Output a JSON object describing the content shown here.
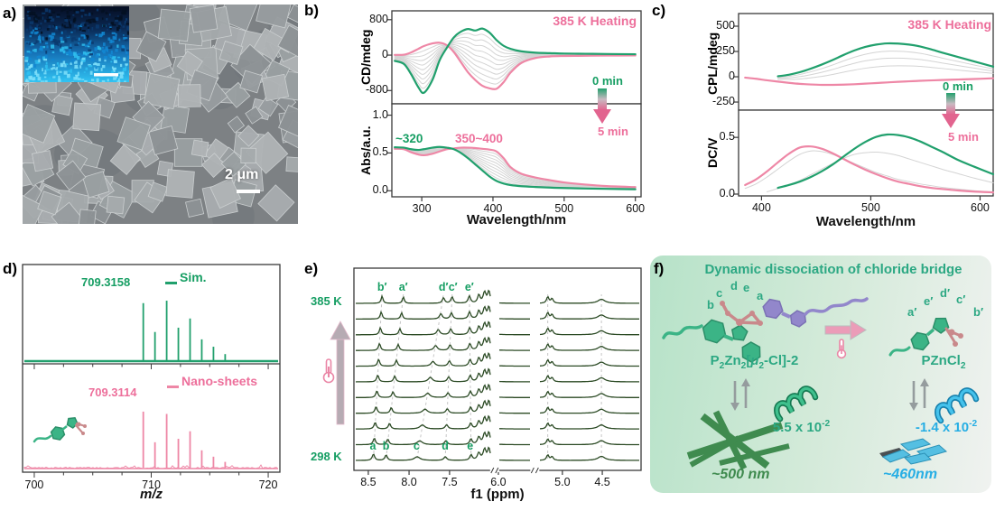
{
  "colors": {
    "green": "#21a06d",
    "pink": "#ee87a6",
    "text_green": "#169e63",
    "text_pink": "#ed6f9b",
    "scheme_green": "#2ca883",
    "blue": "#27aee4",
    "rod_green": "#3f8b4f",
    "purple": "#9287cb",
    "rosy": "#c9898b",
    "nmr_trace": "#2c4b25",
    "gray_curve": "#d4d4d4"
  },
  "panels": {
    "a": {
      "label": "a)",
      "scalebar": "2 μm"
    },
    "b": {
      "label": "b)",
      "heating": "385 K Heating",
      "t0": "0 min",
      "t1": "5 min",
      "green_peak": "~320",
      "pink_peak": "350~400"
    },
    "c": {
      "label": "c)",
      "heating": "385 K Heating",
      "t0": "0 min",
      "t1": "5 min"
    },
    "d": {
      "label": "d)"
    },
    "e": {
      "label": "e)"
    },
    "f": {
      "label": "f)",
      "title": "Dynamic dissociation of chloride bridge",
      "left_site_labels": [
        "b",
        "c",
        "d",
        "e",
        "a"
      ],
      "right_site_labels": [
        "a′",
        "e′",
        "d′",
        "c′",
        "b′"
      ],
      "left_formula": [
        {
          "t": "P"
        },
        {
          "t": "2",
          "sub": true
        },
        {
          "t": "Zn"
        },
        {
          "t": "2",
          "sub": true
        },
        {
          "t": "["
        },
        {
          "t": "μ",
          "i": true
        },
        {
          "t": "2",
          "sub": true
        },
        {
          "t": "-Cl]-2"
        }
      ],
      "right_formula": [
        {
          "t": "PZnCl"
        },
        {
          "t": "2",
          "sub": true
        }
      ],
      "k_left": [
        {
          "t": "5.5 x 10"
        },
        {
          "t": "-2",
          "sup": true
        }
      ],
      "k_right": [
        {
          "t": "-1.4 x 10"
        },
        {
          "t": "-2",
          "sup": true
        }
      ],
      "size_left": "~500 nm",
      "size_right": "~460nm"
    }
  },
  "chart_data": [
    {
      "id": "cd",
      "type": "line",
      "ylabel": "CD/mdeg",
      "xlim": [
        258,
        608
      ],
      "ylim": [
        -1100,
        1000
      ],
      "yticks": [
        {
          "v": 800,
          "label": "800"
        },
        {
          "v": 0,
          "label": "0"
        },
        {
          "v": -800,
          "label": "-800"
        }
      ],
      "x": [
        262,
        275,
        285,
        295,
        303,
        315,
        325,
        335,
        345,
        355,
        365,
        375,
        385,
        395,
        405,
        415,
        425,
        440,
        460,
        480,
        500,
        530,
        560,
        600
      ],
      "series": [
        {
          "name": "0 min",
          "color": "#21a06d",
          "values": [
            -130,
            -200,
            -430,
            -720,
            -850,
            -560,
            -120,
            160,
            400,
            530,
            590,
            555,
            600,
            510,
            340,
            210,
            140,
            85,
            55,
            45,
            35,
            30,
            25,
            20
          ]
        },
        {
          "name": "5 min",
          "color": "#ee87a6",
          "values": [
            5,
            10,
            60,
            140,
            205,
            265,
            280,
            225,
            70,
            -160,
            -390,
            -560,
            -690,
            -750,
            -760,
            -610,
            -390,
            -175,
            -65,
            -30,
            -20,
            -15,
            -10,
            -8
          ]
        }
      ],
      "fade_weights": [
        0.1,
        0.2,
        0.3,
        0.4,
        0.5,
        0.6,
        0.7,
        0.8,
        0.9
      ]
    },
    {
      "id": "abs",
      "type": "line",
      "ylabel": "Abs/a.u.",
      "xlabel": "Wavelength/nm",
      "xlim": [
        258,
        608
      ],
      "ylim": [
        -0.08,
        1.15
      ],
      "yticks": [
        {
          "v": 1.0,
          "label": "1.0"
        },
        {
          "v": 0.5,
          "label": "0.5"
        },
        {
          "v": 0.0,
          "label": "0.0"
        }
      ],
      "xticks": [
        {
          "v": 300,
          "label": "300"
        },
        {
          "v": 400,
          "label": "400"
        },
        {
          "v": 500,
          "label": "500"
        },
        {
          "v": 600,
          "label": "600"
        }
      ],
      "x": [
        262,
        275,
        285,
        295,
        303,
        315,
        325,
        335,
        345,
        355,
        365,
        375,
        385,
        395,
        405,
        415,
        425,
        440,
        460,
        480,
        500,
        530,
        560,
        600
      ],
      "series": [
        {
          "name": "0 min",
          "color": "#21a06d",
          "values": [
            0.575,
            0.57,
            0.55,
            0.54,
            0.55,
            0.57,
            0.58,
            0.57,
            0.55,
            0.5,
            0.43,
            0.35,
            0.27,
            0.19,
            0.13,
            0.095,
            0.075,
            0.06,
            0.05,
            0.042,
            0.036,
            0.03,
            0.025,
            0.02
          ]
        },
        {
          "name": "5 min",
          "color": "#ee87a6",
          "values": [
            0.555,
            0.55,
            0.51,
            0.48,
            0.47,
            0.49,
            0.52,
            0.55,
            0.56,
            0.57,
            0.57,
            0.565,
            0.555,
            0.545,
            0.52,
            0.43,
            0.31,
            0.225,
            0.175,
            0.14,
            0.11,
            0.082,
            0.062,
            0.048
          ]
        }
      ],
      "fade_weights": [
        0.1,
        0.2,
        0.3,
        0.4,
        0.5,
        0.6,
        0.7,
        0.8,
        0.9
      ]
    },
    {
      "id": "cpl",
      "type": "line",
      "ylabel": "CPL/mdeg",
      "xlim": [
        379,
        612
      ],
      "ylim": [
        -330,
        625
      ],
      "yticks": [
        {
          "v": 500,
          "label": "500"
        },
        {
          "v": 250,
          "label": "250"
        },
        {
          "v": 0,
          "label": "0"
        },
        {
          "v": -250,
          "label": "-250"
        }
      ],
      "x": [
        385,
        395,
        405,
        415,
        425,
        435,
        445,
        455,
        465,
        475,
        485,
        495,
        505,
        515,
        525,
        535,
        545,
        555,
        565,
        580,
        595,
        612
      ],
      "series": [
        {
          "name": "0 min",
          "color": "#21a06d",
          "values": [
            null,
            null,
            null,
            5,
            20,
            45,
            80,
            120,
            165,
            215,
            260,
            295,
            318,
            330,
            328,
            318,
            300,
            272,
            240,
            195,
            150,
            100
          ]
        },
        {
          "name": "5 min",
          "color": "#ee87a6",
          "values": [
            -8,
            -20,
            -35,
            -48,
            -60,
            -70,
            -76,
            -80,
            -80,
            -78,
            -74,
            -68,
            -62,
            -56,
            -50,
            -45,
            -40,
            -36,
            -32,
            -27,
            -22,
            -15
          ]
        }
      ],
      "fade_weights": [
        0.2,
        0.38,
        0.58
      ]
    },
    {
      "id": "dc",
      "type": "line",
      "ylabel": "DC/V",
      "xlabel": "Wavelength/nm",
      "xlim": [
        379,
        612
      ],
      "ylim": [
        -0.016,
        0.74
      ],
      "yticks": [
        {
          "v": 0.5,
          "label": "0.5"
        },
        {
          "v": 0.0,
          "label": "0.0"
        }
      ],
      "xticks": [
        {
          "v": 400,
          "label": "400"
        },
        {
          "v": 500,
          "label": "500"
        },
        {
          "v": 600,
          "label": "600"
        }
      ],
      "x": [
        385,
        395,
        405,
        415,
        425,
        435,
        445,
        455,
        465,
        475,
        485,
        495,
        505,
        515,
        525,
        535,
        545,
        555,
        565,
        580,
        595,
        612
      ],
      "series": [
        {
          "name": "0 min",
          "color": "#21a06d",
          "values": [
            null,
            null,
            null,
            0.055,
            0.08,
            0.11,
            0.15,
            0.2,
            0.26,
            0.33,
            0.4,
            0.46,
            0.505,
            0.525,
            0.52,
            0.5,
            0.465,
            0.42,
            0.375,
            0.3,
            0.24,
            0.175
          ]
        },
        {
          "name": "5 min",
          "color": "#ee87a6",
          "values": [
            0.08,
            0.13,
            0.2,
            0.28,
            0.355,
            0.41,
            0.42,
            0.4,
            0.36,
            0.31,
            0.26,
            0.215,
            0.175,
            0.14,
            0.11,
            0.09,
            0.07,
            0.055,
            0.045,
            0.032,
            0.022,
            0.015
          ]
        }
      ],
      "gray_series": [
        {
          "values": [
            0.05,
            0.09,
            0.15,
            0.22,
            0.29,
            0.35,
            0.38,
            0.375,
            0.35,
            0.31,
            0.27,
            0.23,
            0.19,
            0.16,
            0.13,
            0.11,
            0.09,
            0.075,
            0.06,
            0.045,
            0.03,
            0.02
          ]
        },
        {
          "values": [
            null,
            null,
            0.02,
            0.05,
            0.08,
            0.12,
            0.17,
            0.22,
            0.27,
            0.315,
            0.35,
            0.365,
            0.37,
            0.36,
            0.34,
            0.31,
            0.28,
            0.25,
            0.22,
            0.18,
            0.14,
            0.1
          ]
        }
      ]
    },
    {
      "id": "ms",
      "type": "stem",
      "xlabel": "m/z",
      "xlim": [
        699,
        721
      ],
      "minor_step": 2.5,
      "xticks": [
        {
          "v": 700,
          "label": "700"
        },
        {
          "v": 710,
          "label": "710"
        },
        {
          "v": 720,
          "label": "720"
        }
      ],
      "mz": [
        709.32,
        710.32,
        711.32,
        712.32,
        713.32,
        714.32,
        715.32,
        716.32
      ],
      "series": [
        {
          "name": "Sim.",
          "color": "#21a06d",
          "peak_label": "709.3158",
          "rel": [
            0.93,
            0.46,
            0.97,
            0.53,
            0.68,
            0.34,
            0.22,
            0.1
          ]
        },
        {
          "name": "Nano-sheets",
          "color": "#ee87a6",
          "peak_label": "709.3114",
          "rel": [
            0.97,
            0.44,
            0.93,
            0.5,
            0.63,
            0.3,
            0.19,
            0.1
          ]
        }
      ]
    },
    {
      "id": "nmr",
      "type": "nmr-stack",
      "xlabel": "f1 (ppm)",
      "rows": 11,
      "temp_top": "385 K",
      "temp_bottom": "298 K",
      "xticks": [
        {
          "label": "8.5",
          "f": 0.05
        },
        {
          "label": "8.0",
          "f": 0.192
        },
        {
          "label": "7.5",
          "f": 0.333
        },
        {
          "label": "6.0",
          "f": 0.503
        },
        {
          "label": "5.0",
          "f": 0.726
        },
        {
          "label": "4.5",
          "f": 0.865
        }
      ],
      "gaps": [
        [
          0.475,
          0.505
        ],
        [
          0.615,
          0.645
        ]
      ],
      "peaks_298": [
        [
          0.068,
          7,
          0.005
        ],
        [
          0.112,
          6,
          0.005
        ],
        [
          0.22,
          4,
          0.012
        ],
        [
          0.318,
          4,
          0.006
        ],
        [
          0.408,
          6,
          0.005
        ],
        [
          0.435,
          8,
          0.006
        ],
        [
          0.455,
          12,
          0.006
        ],
        [
          0.47,
          13,
          0.005
        ],
        [
          0.675,
          6,
          0.005
        ],
        [
          0.69,
          4,
          0.005
        ],
        [
          0.862,
          4.5,
          0.015
        ]
      ],
      "peaks_385": [
        [
          0.098,
          8,
          0.004
        ],
        [
          0.172,
          7,
          0.004
        ],
        [
          0.312,
          6,
          0.005
        ],
        [
          0.342,
          7,
          0.005
        ],
        [
          0.402,
          8,
          0.005
        ],
        [
          0.435,
          9,
          0.005
        ],
        [
          0.455,
          12,
          0.006
        ],
        [
          0.47,
          13,
          0.005
        ],
        [
          0.675,
          7,
          0.005
        ],
        [
          0.69,
          5,
          0.005
        ],
        [
          0.862,
          4.5,
          0.015
        ]
      ],
      "guides": [
        [
          0.068,
          0.098
        ],
        [
          0.112,
          0.172
        ],
        [
          0.22,
          0.312
        ],
        [
          0.318,
          0.342
        ],
        [
          0.408,
          0.402
        ],
        [
          0.675,
          0.675
        ],
        [
          0.862,
          0.862
        ]
      ],
      "labels_top": [
        {
          "t": "b′",
          "f": 0.098
        },
        {
          "t": "a′",
          "f": 0.172
        },
        {
          "t": "d′",
          "f": 0.312
        },
        {
          "t": "c′",
          "f": 0.345
        },
        {
          "t": "e′",
          "f": 0.402
        }
      ],
      "labels_bottom": [
        {
          "t": "a",
          "f": 0.066
        },
        {
          "t": "b",
          "f": 0.112
        },
        {
          "t": "c",
          "f": 0.218
        },
        {
          "t": "d",
          "f": 0.318
        },
        {
          "t": "e",
          "f": 0.405
        }
      ]
    }
  ]
}
